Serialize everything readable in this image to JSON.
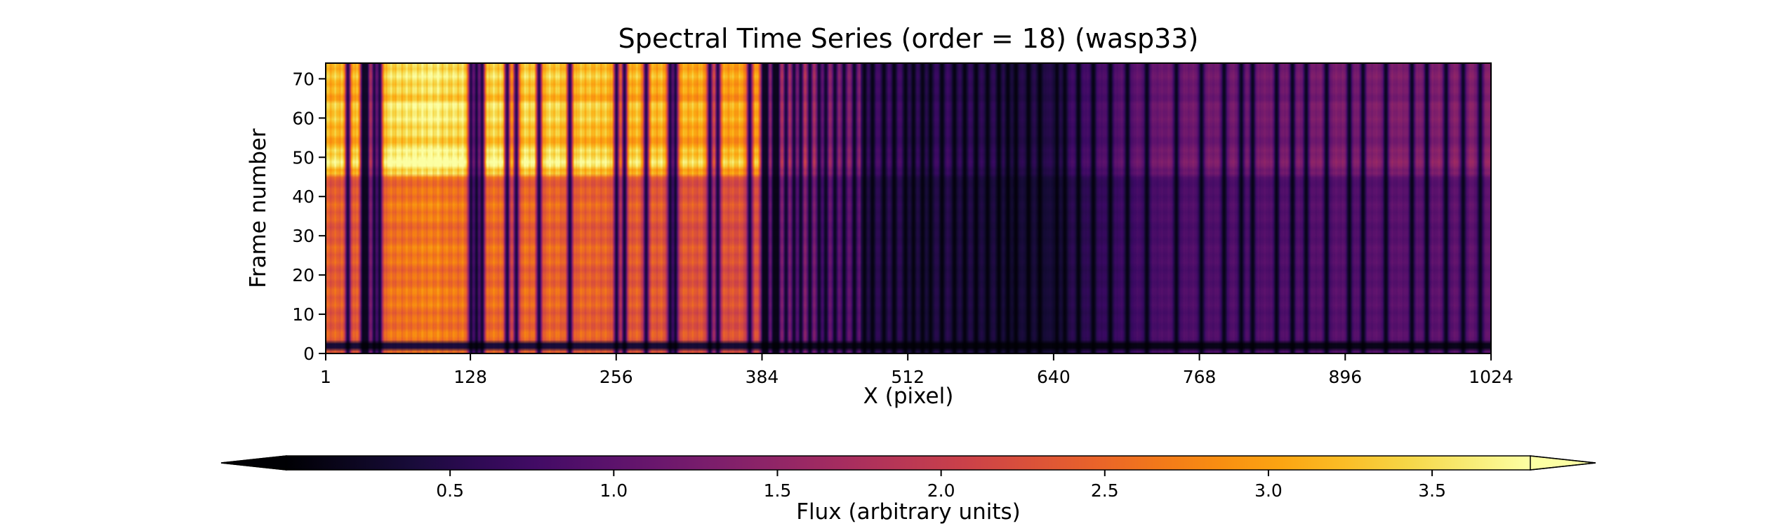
{
  "chart_data": {
    "type": "heatmap",
    "title": "Spectral Time Series (order = 18) (wasp33)",
    "xlabel": "X (pixel)",
    "ylabel": "Frame number",
    "xlim": [
      1,
      1024
    ],
    "ylim": [
      0,
      74
    ],
    "x_ticks": [
      1,
      128,
      256,
      384,
      512,
      640,
      768,
      896,
      1024
    ],
    "y_ticks": [
      0,
      10,
      20,
      30,
      40,
      50,
      60,
      70
    ],
    "grid": false,
    "colormap": "inferno",
    "colorbar": {
      "label": "Flux (arbitrary units)",
      "orientation": "horizontal",
      "placement": "bottom",
      "extend": "both",
      "vmin": 0.0,
      "vmax": 3.8,
      "ticks": [
        0.5,
        1.0,
        1.5,
        2.0,
        2.5,
        3.0,
        3.5
      ]
    },
    "continuum_segments": [
      {
        "x": [
          1,
          100
        ],
        "flux": [
          2.9,
          3.3
        ]
      },
      {
        "x": [
          100,
          384
        ],
        "flux": [
          3.2,
          2.7
        ]
      },
      {
        "x": [
          384,
          470
        ],
        "flux": [
          2.5,
          1.3
        ]
      },
      {
        "x": [
          470,
          640
        ],
        "flux": [
          0.8,
          0.45
        ]
      },
      {
        "x": [
          640,
          740
        ],
        "flux": [
          0.6,
          1.05
        ]
      },
      {
        "x": [
          740,
          1024
        ],
        "flux": [
          1.05,
          1.25
        ]
      }
    ],
    "absorption_lines": [
      20,
      33,
      37,
      43,
      48,
      128,
      133,
      138,
      160,
      168,
      188,
      215,
      256,
      263,
      282,
      303,
      308,
      338,
      345,
      373,
      385,
      388,
      394,
      398,
      405,
      412,
      418,
      426,
      434,
      440,
      448,
      456,
      465,
      474,
      481,
      491,
      500,
      510,
      517,
      525,
      532,
      542,
      553,
      562,
      572,
      582,
      592,
      600,
      607,
      618,
      628,
      643,
      650,
      662,
      675,
      690,
      705,
      722,
      748,
      770,
      790,
      805,
      815,
      836,
      850,
      862,
      880,
      900,
      912,
      932,
      955,
      968,
      985,
      1000,
      1015
    ],
    "frame_modulation": [
      {
        "frames": [
          0,
          0
        ],
        "factor": 0.8
      },
      {
        "frames": [
          1,
          2
        ],
        "factor": 0.12
      },
      {
        "frames": [
          3,
          45
        ],
        "factor": 0.82
      },
      {
        "frames": [
          46,
          74
        ],
        "factor": 1.08
      },
      {
        "frames": [
          48,
          52
        ],
        "factor": 1.18
      },
      {
        "frames": [
          62,
          64
        ],
        "factor": 1.14
      }
    ]
  }
}
